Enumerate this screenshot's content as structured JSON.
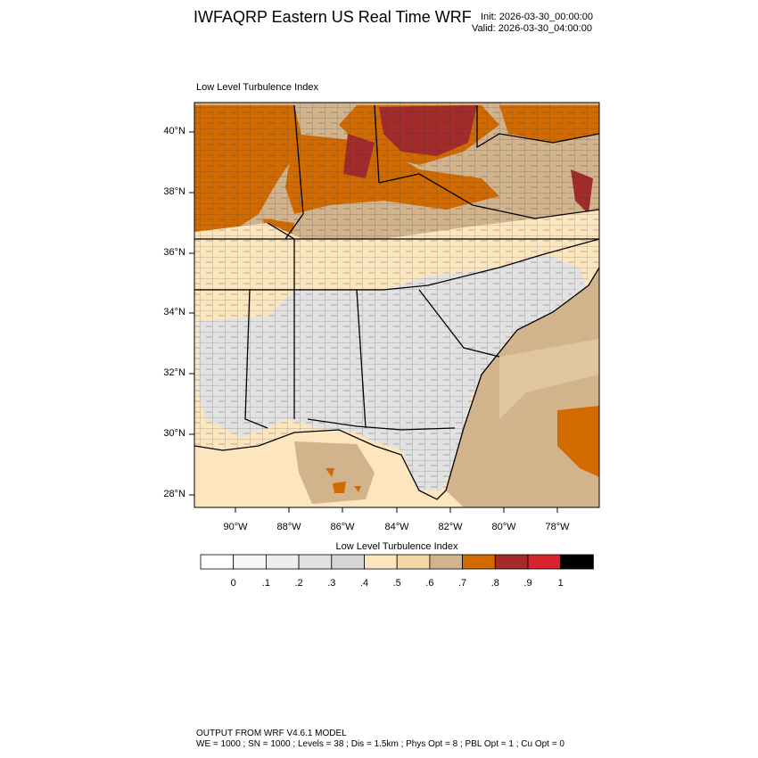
{
  "header": {
    "title": "IWFAQRP Eastern US Real Time WRF",
    "init": "Init: 2026-03-30_00:00:00",
    "valid": "Valid: 2026-03-30_04:00:00"
  },
  "map": {
    "subtitle": "Low Level Turbulence Index",
    "lat_labels": [
      "40°N",
      "38°N",
      "36°N",
      "34°N",
      "32°N",
      "30°N",
      "28°N"
    ],
    "lon_labels": [
      "90°W",
      "88°W",
      "86°W",
      "84°W",
      "82°W",
      "80°W",
      "78°W"
    ]
  },
  "colorbar": {
    "title": "Low Level Turbulence Index",
    "labels": [
      "0",
      ".1",
      ".2",
      ".3",
      ".4",
      ".5",
      ".6",
      ".7",
      ".8",
      ".9",
      "1"
    ],
    "colors": [
      "#ffffff",
      "#f7f7f7",
      "#eeeeee",
      "#e2e2e2",
      "#d6d6d6",
      "#fde6bd",
      "#f3d6a6",
      "#d2b48c",
      "#d26a00",
      "#a52a2a",
      "#d8242e",
      "#000000"
    ]
  },
  "footer": {
    "line1": "OUTPUT FROM WRF V4.6.1 MODEL",
    "line2": "WE = 1000 ; SN = 1000 ; Levels = 38 ; Dis = 1.5km ; Phys Opt = 8 ; PBL Opt = 1 ; Cu Opt = 0"
  }
}
